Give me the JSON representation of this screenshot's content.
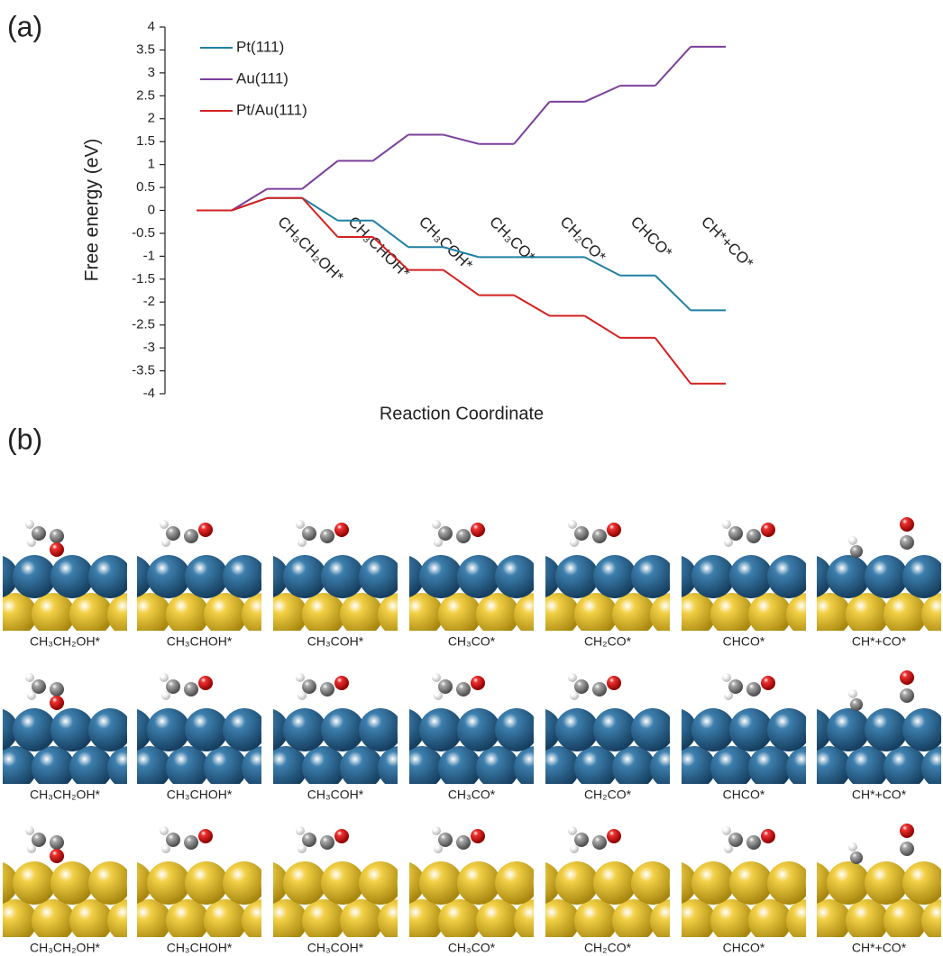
{
  "chart_data": {
    "type": "step",
    "title": "(a)",
    "ylabel": "Free energy (eV)",
    "xlabel": "Reaction Coordinate",
    "categories": [
      null,
      "CH₃CH₂OH*",
      "CH₃CHOH*",
      "CH₃COH*",
      "CH₃CO*",
      "CH₂CO*",
      "CHCO*",
      "CH*+CO*"
    ],
    "series": [
      {
        "name": "Pt(111)",
        "color": "#1f80a3",
        "values": [
          0,
          0.27,
          -0.22,
          -0.8,
          -1.02,
          -1.02,
          -1.42,
          -2.18
        ]
      },
      {
        "name": "Au(111)",
        "color": "#7b3f9a",
        "values": [
          0,
          0.47,
          1.08,
          1.65,
          1.45,
          2.37,
          2.72,
          3.57
        ]
      },
      {
        "name": "Pt/Au(111)",
        "color": "#d42020",
        "values": [
          0,
          0.27,
          -0.58,
          -1.3,
          -1.85,
          -2.3,
          -2.78,
          -3.78
        ]
      }
    ],
    "ylim": [
      -4,
      4
    ],
    "yticks": [
      -4,
      -3.5,
      -3,
      -2.5,
      -2,
      -1.5,
      -1,
      -0.5,
      0,
      0.5,
      1,
      1.5,
      2,
      2.5,
      3,
      3.5,
      4
    ],
    "grid": false,
    "legend": "upper left"
  },
  "figure": {
    "panel_label": "(b)",
    "structures": [
      [
        "CH₃CH₂OH*",
        "CH₃CHOH*",
        "CH₃COH*",
        "CH₃CO*",
        "CH₂CO*",
        "CHCO*",
        "CH*+CO*"
      ],
      [
        "CH₃CH₂OH*",
        "CH₃CHOH*",
        "CH₃COH*",
        "CH₃CO*",
        "CH₂CO*",
        "CHCO*",
        "CH*+CO*"
      ],
      [
        "CH₃CH₂OH*",
        "CH₃CHOH*",
        "CH₃COH*",
        "CH₃CO*",
        "CH₂CO*",
        "CHCO*",
        "CH*+CO*"
      ]
    ]
  }
}
